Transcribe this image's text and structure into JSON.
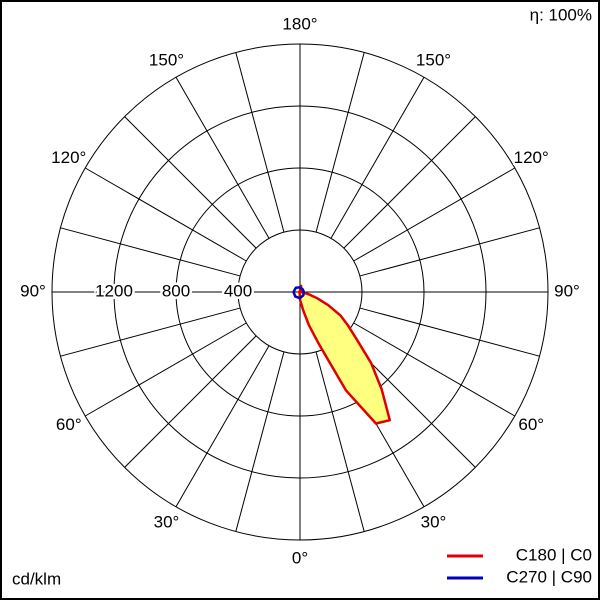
{
  "chart_data": {
    "type": "polar",
    "rlim": [
      0,
      1600
    ],
    "rticks": [
      400,
      800,
      1200
    ],
    "angle_ticks": [
      {
        "value": 0,
        "label": "0°"
      },
      {
        "value": 30,
        "label": "30°"
      },
      {
        "value": 60,
        "label": "60°"
      },
      {
        "value": 90,
        "label": "90°"
      },
      {
        "value": 120,
        "label": "120°"
      },
      {
        "value": 150,
        "label": "150°"
      },
      {
        "value": 180,
        "label": "180°"
      }
    ],
    "efficiency": "η: 100%",
    "unit": "cd/klm",
    "series": [
      {
        "name": "C180 | C0",
        "color": "#e00000",
        "fill": "#ffff80",
        "angles": [
          -180,
          -90,
          -30,
          0,
          10,
          15,
          20,
          25,
          30,
          35,
          40,
          45,
          50,
          55,
          60,
          65,
          70,
          75,
          80,
          85,
          90,
          135,
          170
        ],
        "values": [
          10,
          5,
          5,
          50,
          120,
          220,
          360,
          700,
          980,
          1010,
          820,
          650,
          480,
          380,
          300,
          200,
          120,
          60,
          30,
          15,
          5,
          10,
          40
        ]
      },
      {
        "name": "C270 | C90",
        "color": "#0000c0",
        "angles": [
          -180,
          -135,
          -90,
          -45,
          0,
          45,
          90,
          135,
          180
        ],
        "values": [
          30,
          38,
          42,
          42,
          40,
          30,
          25,
          25,
          30
        ]
      }
    ]
  }
}
